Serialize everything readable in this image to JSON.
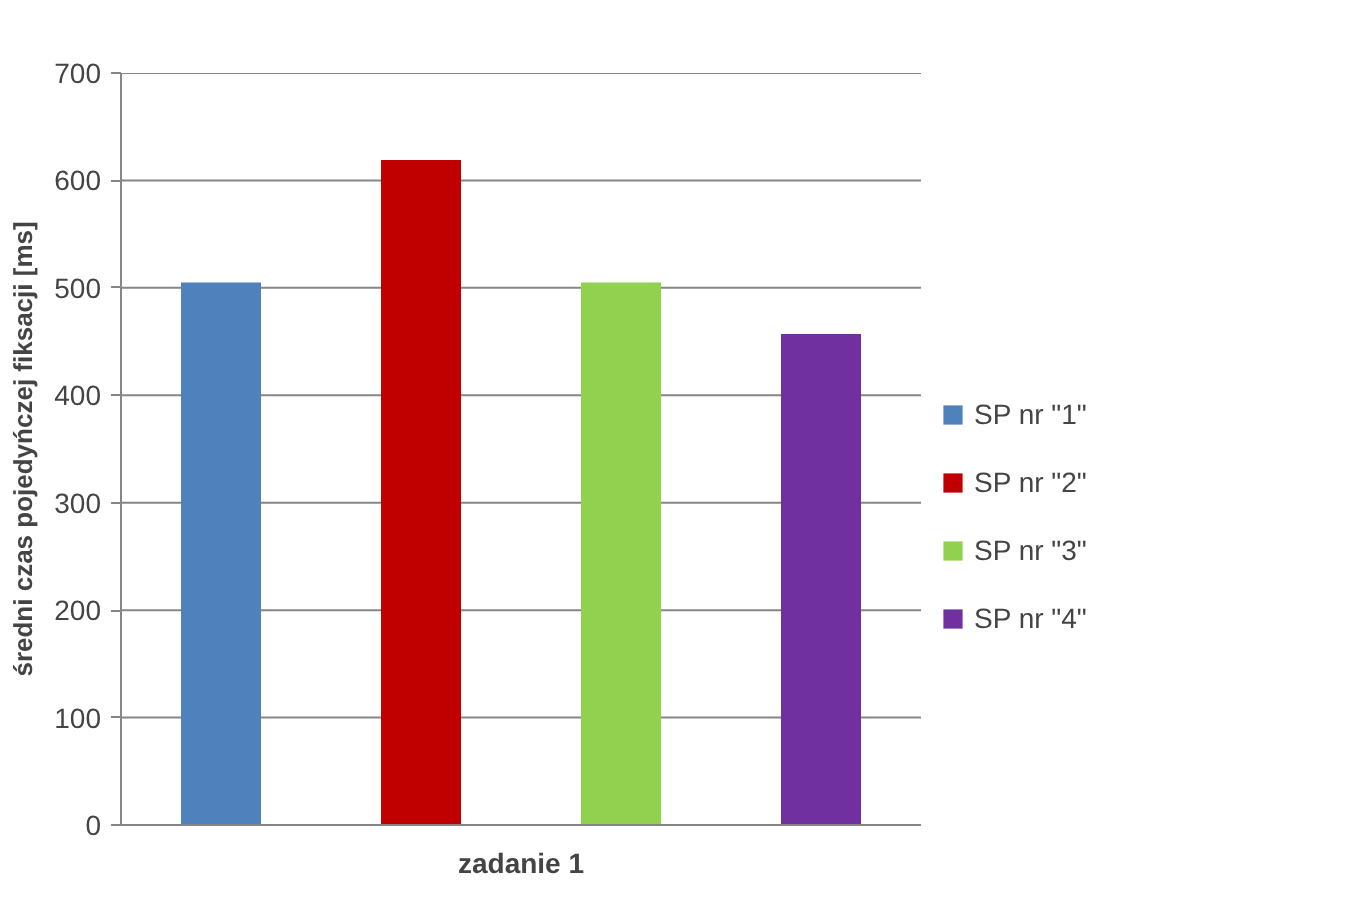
{
  "chart_data": {
    "type": "bar",
    "ylabel": "średni czas pojedyńczej fiksacji [ms]",
    "categories": [
      "zadanie 1"
    ],
    "series": [
      {
        "name": "SP nr \"1\"",
        "color": "#4f81bd",
        "values": [
          505
        ]
      },
      {
        "name": "SP nr \"2\"",
        "color": "#c00000",
        "values": [
          619
        ]
      },
      {
        "name": "SP nr \"3\"",
        "color": "#92d050",
        "values": [
          505
        ]
      },
      {
        "name": "SP nr \"4\"",
        "color": "#7030a0",
        "values": [
          457
        ]
      }
    ],
    "ylim": [
      0,
      700
    ],
    "yticks": [
      0,
      100,
      200,
      300,
      400,
      500,
      600,
      700
    ],
    "grid": "y",
    "legend": "right"
  }
}
